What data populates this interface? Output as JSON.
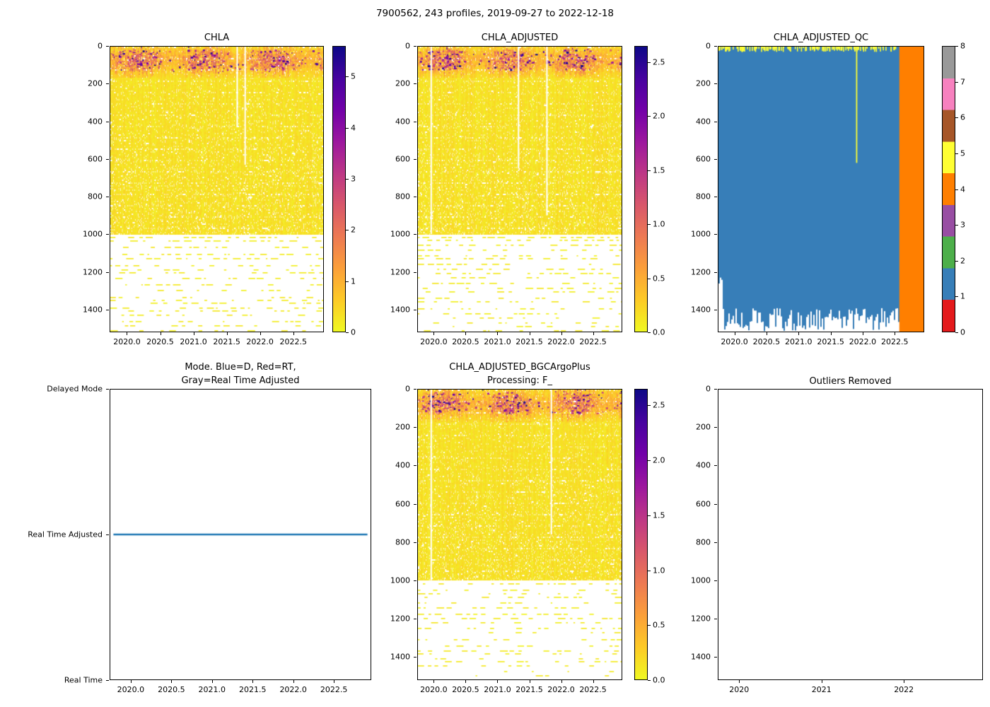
{
  "figure": {
    "title": "7900562, 243 profiles, 2019-09-27 to 2022-12-18",
    "background": "#ffffff"
  },
  "palette": {
    "plasma_reversed_low_to_high": [
      "#f0f921",
      "#fdca26",
      "#fb9f3a",
      "#ed7953",
      "#d8576b",
      "#bd3786",
      "#9c179e",
      "#7201a8",
      "#46039f",
      "#0d0887"
    ],
    "qc_set1_0_to_8": [
      "#e41a1c",
      "#377eb8",
      "#4daf4a",
      "#984ea3",
      "#ff7f00",
      "#ffff33",
      "#a65628",
      "#f781bf",
      "#999999"
    ],
    "mode_line_blue": "#1f77b4",
    "axis_color": "#000000"
  },
  "chart_data": [
    {
      "kind": "profile_heatmap",
      "title": "CHLA",
      "x_range": [
        2019.74,
        2022.96
      ],
      "y_range": [
        0,
        1520
      ],
      "x_ticks": {
        "values": [
          2020.0,
          2020.5,
          2021.0,
          2021.5,
          2022.0,
          2022.5
        ],
        "labels": [
          "2020.0",
          "2020.5",
          "2021.0",
          "2021.5",
          "2022.0",
          "2022.5"
        ]
      },
      "y_ticks": {
        "values": [
          0,
          200,
          400,
          600,
          800,
          1000,
          1200,
          1400
        ],
        "labels": [
          "0",
          "200",
          "400",
          "600",
          "800",
          "1000",
          "1200",
          "1400"
        ]
      },
      "colorbar": {
        "style": "continuous",
        "vmin": 0,
        "vmax": 5.6,
        "ticks": {
          "values": [
            0,
            1,
            2,
            3,
            4,
            5
          ],
          "labels": [
            "0",
            "1",
            "2",
            "3",
            "4",
            "5"
          ]
        }
      },
      "render": {
        "seed": 11,
        "n_profiles": 243,
        "background_value_approx": 0.15,
        "surface_bloom_depth_m": 165,
        "surface_max_value_approx": 5.5,
        "sparse_below_m": 1000,
        "max_depth_m": 1520,
        "gaps": [
          {
            "x": 2021.66,
            "depth_m": 430
          },
          {
            "x": 2021.78,
            "depth_m": 630
          }
        ]
      }
    },
    {
      "kind": "profile_heatmap",
      "title": "CHLA_ADJUSTED",
      "x_range": [
        2019.74,
        2022.96
      ],
      "y_range": [
        0,
        1520
      ],
      "x_ticks": {
        "values": [
          2020.0,
          2020.5,
          2021.0,
          2021.5,
          2022.0,
          2022.5
        ],
        "labels": [
          "2020.0",
          "2020.5",
          "2021.0",
          "2021.5",
          "2022.0",
          "2022.5"
        ]
      },
      "y_ticks": {
        "values": [
          0,
          200,
          400,
          600,
          800,
          1000,
          1200,
          1400
        ],
        "labels": [
          "0",
          "200",
          "400",
          "600",
          "800",
          "1000",
          "1200",
          "1400"
        ]
      },
      "colorbar": {
        "style": "continuous",
        "vmin": 0,
        "vmax": 2.65,
        "ticks": {
          "values": [
            0,
            0.5,
            1.0,
            1.5,
            2.0,
            2.5
          ],
          "labels": [
            "0.0",
            "0.5",
            "1.0",
            "1.5",
            "2.0",
            "2.5"
          ]
        }
      },
      "render": {
        "seed": 23,
        "n_profiles": 243,
        "background_value_approx": 0.08,
        "surface_bloom_depth_m": 165,
        "surface_max_value_approx": 2.6,
        "sparse_below_m": 1000,
        "max_depth_m": 1520,
        "gaps": [
          {
            "x": 2019.95,
            "depth_m": 1000
          },
          {
            "x": 2021.33,
            "depth_m": 650
          },
          {
            "x": 2021.78,
            "depth_m": 900
          }
        ]
      }
    },
    {
      "kind": "qc_heatmap",
      "title": "CHLA_ADJUSTED_QC",
      "x_range": [
        2019.74,
        2022.96
      ],
      "y_range": [
        0,
        1520
      ],
      "x_ticks": {
        "values": [
          2020.0,
          2020.5,
          2021.0,
          2021.5,
          2022.0,
          2022.5
        ],
        "labels": [
          "2020.0",
          "2020.5",
          "2021.0",
          "2021.5",
          "2022.0",
          "2022.5"
        ]
      },
      "y_ticks": {
        "values": [
          0,
          200,
          400,
          600,
          800,
          1000,
          1200,
          1400
        ],
        "labels": [
          "0",
          "200",
          "400",
          "600",
          "800",
          "1000",
          "1200",
          "1400"
        ]
      },
      "colorbar": {
        "style": "discrete",
        "vmin": 0,
        "vmax": 8,
        "colors_bottom_to_top": [
          "#e41a1c",
          "#377eb8",
          "#4daf4a",
          "#984ea3",
          "#ff7f00",
          "#ffff33",
          "#a65628",
          "#f781bf",
          "#999999"
        ],
        "ticks": {
          "values": [
            0,
            1,
            2,
            3,
            4,
            5,
            6,
            7,
            8
          ],
          "labels": [
            "0",
            "1",
            "2",
            "3",
            "4",
            "5",
            "6",
            "7",
            "8"
          ]
        }
      },
      "render": {
        "seed": 31,
        "dominant_qc": 1,
        "dominant_color": "#377eb8",
        "band_qc": 4,
        "band_color": "#ff7f00",
        "band_start_x": 2022.58,
        "speckle_qc": 5,
        "speckle_color": "#ffff33",
        "yellow_line": {
          "x": 2021.9,
          "depth_m": 620
        },
        "ragged_bottom_from_m": 1395
      }
    },
    {
      "kind": "mode_line",
      "title": "Mode. Blue=D, Red=RT,\nGray=Real Time Adjusted",
      "x_range": [
        2019.74,
        2022.96
      ],
      "y_range": [
        0,
        1
      ],
      "x_ticks": {
        "values": [
          2020.0,
          2020.5,
          2021.0,
          2021.5,
          2022.0,
          2022.5
        ],
        "labels": [
          "2020.0",
          "2020.5",
          "2021.0",
          "2021.5",
          "2022.0",
          "2022.5"
        ]
      },
      "y_ticks": {
        "values": [
          0,
          0.5,
          1
        ],
        "labels": [
          "Delayed Mode",
          "Real Time Adjusted",
          "Real Time"
        ]
      },
      "render": {
        "line_level": "Real Time Adjusted",
        "line_y_frac": 0.5,
        "line_color": "#1f77b4"
      }
    },
    {
      "kind": "profile_heatmap",
      "title": "CHLA_ADJUSTED_BGCArgoPlus\nProcessing: F_",
      "x_range": [
        2019.74,
        2022.96
      ],
      "y_range": [
        0,
        1520
      ],
      "x_ticks": {
        "values": [
          2020.0,
          2020.5,
          2021.0,
          2021.5,
          2022.0,
          2022.5
        ],
        "labels": [
          "2020.0",
          "2020.5",
          "2021.0",
          "2021.5",
          "2022.0",
          "2022.5"
        ]
      },
      "y_ticks": {
        "values": [
          0,
          200,
          400,
          600,
          800,
          1000,
          1200,
          1400
        ],
        "labels": [
          "0",
          "200",
          "400",
          "600",
          "800",
          "1000",
          "1200",
          "1400"
        ]
      },
      "colorbar": {
        "style": "continuous",
        "vmin": 0,
        "vmax": 2.65,
        "ticks": {
          "values": [
            0,
            0.5,
            1.0,
            1.5,
            2.0,
            2.5
          ],
          "labels": [
            "0.0",
            "0.5",
            "1.0",
            "1.5",
            "2.0",
            "2.5"
          ]
        }
      },
      "render": {
        "seed": 47,
        "n_profiles": 243,
        "background_value_approx": 0.08,
        "surface_bloom_depth_m": 165,
        "surface_max_value_approx": 2.6,
        "sparse_below_m": 1000,
        "max_depth_m": 1520,
        "gaps": [
          {
            "x": 2019.95,
            "depth_m": 1000
          },
          {
            "x": 2021.85,
            "depth_m": 760
          }
        ]
      }
    },
    {
      "kind": "empty",
      "title": "Outliers Removed",
      "x_range": [
        2019.74,
        2022.96
      ],
      "y_range": [
        0,
        1520
      ],
      "x_ticks": {
        "values": [
          2020,
          2021,
          2022
        ],
        "labels": [
          "2020",
          "2021",
          "2022"
        ]
      },
      "y_ticks": {
        "values": [
          0,
          200,
          400,
          600,
          800,
          1000,
          1200,
          1400
        ],
        "labels": [
          "0",
          "200",
          "400",
          "600",
          "800",
          "1000",
          "1200",
          "1400"
        ]
      }
    }
  ]
}
